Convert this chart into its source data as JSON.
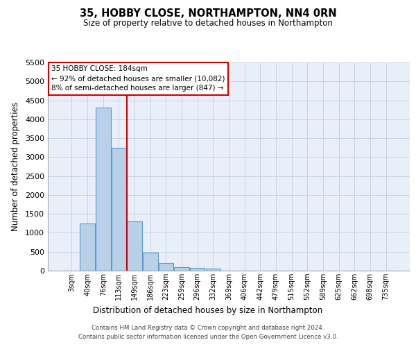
{
  "title1": "35, HOBBY CLOSE, NORTHAMPTON, NN4 0RN",
  "title2": "Size of property relative to detached houses in Northampton",
  "xlabel": "Distribution of detached houses by size in Northampton",
  "ylabel": "Number of detached properties",
  "categories": [
    "3sqm",
    "40sqm",
    "76sqm",
    "113sqm",
    "149sqm",
    "186sqm",
    "223sqm",
    "259sqm",
    "296sqm",
    "332sqm",
    "369sqm",
    "406sqm",
    "442sqm",
    "479sqm",
    "515sqm",
    "552sqm",
    "589sqm",
    "625sqm",
    "662sqm",
    "698sqm",
    "735sqm"
  ],
  "values": [
    0,
    1250,
    4300,
    3250,
    1300,
    475,
    200,
    100,
    75,
    50,
    0,
    0,
    0,
    0,
    0,
    0,
    0,
    0,
    0,
    0,
    0
  ],
  "bar_color": "#b8d0e8",
  "bar_edge_color": "#5b9bd5",
  "ylim_max": 5500,
  "yticks": [
    0,
    500,
    1000,
    1500,
    2000,
    2500,
    3000,
    3500,
    4000,
    4500,
    5000,
    5500
  ],
  "property_line_color": "#cc0000",
  "annotation_box_edge_color": "#cc0000",
  "annotation_title": "35 HOBBY CLOSE: 184sqm",
  "annotation_line1": "← 92% of detached houses are smaller (10,082)",
  "annotation_line2": "8% of semi-detached houses are larger (847) →",
  "footer1": "Contains HM Land Registry data © Crown copyright and database right 2024.",
  "footer2": "Contains public sector information licensed under the Open Government Licence v3.0.",
  "bg_color": "#e8eff8",
  "grid_color": "#c8d4e4"
}
